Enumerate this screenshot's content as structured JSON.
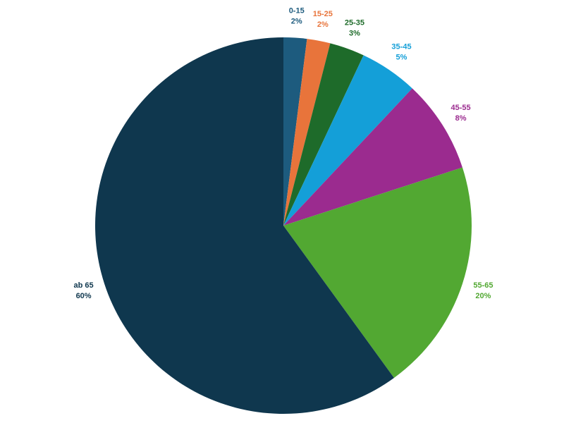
{
  "chart_data": {
    "type": "pie",
    "categories": [
      "0-15",
      "15-25",
      "25-35",
      "35-45",
      "45-55",
      "55-65",
      "ab 65"
    ],
    "values": [
      2,
      2,
      3,
      5,
      8,
      20,
      60
    ],
    "value_labels": [
      "2%",
      "2%",
      "3%",
      "5%",
      "8%",
      "20%",
      "60%"
    ],
    "colors": [
      "#1d5b7e",
      "#e8743b",
      "#1e6b2a",
      "#149fd8",
      "#9b2b8f",
      "#52a832",
      "#0f374e"
    ]
  }
}
